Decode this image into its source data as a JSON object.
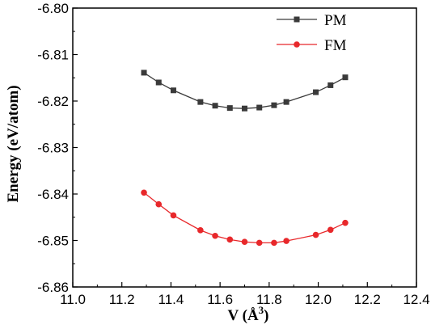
{
  "chart_data": {
    "type": "line",
    "title": "",
    "xlabel": "V (Å",
    "xlabel_sup": "3",
    "xlabel_close": ")",
    "ylabel": "Energy (eV/atom)",
    "xlim": [
      11.0,
      12.4
    ],
    "ylim": [
      -6.86,
      -6.8
    ],
    "x_ticks": [
      "11.0",
      "11.2",
      "11.4",
      "11.6",
      "11.8",
      "12.0",
      "12.2",
      "12.4"
    ],
    "x_tick_values": [
      11.0,
      11.2,
      11.4,
      11.6,
      11.8,
      12.0,
      12.2,
      12.4
    ],
    "y_ticks": [
      "-6.80",
      "-6.81",
      "-6.82",
      "-6.83",
      "-6.84",
      "-6.85",
      "-6.86"
    ],
    "y_tick_values": [
      -6.8,
      -6.81,
      -6.82,
      -6.83,
      -6.84,
      -6.85,
      -6.86
    ],
    "grid": false,
    "legend_position": "top-right",
    "series": [
      {
        "name": "PM",
        "color": "#3a3a3a",
        "marker": "square",
        "x": [
          11.29,
          11.35,
          11.41,
          11.52,
          11.58,
          11.64,
          11.7,
          11.76,
          11.82,
          11.87,
          11.99,
          12.05,
          12.11
        ],
        "y": [
          -6.8139,
          -6.816,
          -6.8177,
          -6.8202,
          -6.821,
          -6.8215,
          -6.8216,
          -6.8214,
          -6.8209,
          -6.8202,
          -6.8181,
          -6.8166,
          -6.8149
        ]
      },
      {
        "name": "FM",
        "color": "#e8282b",
        "marker": "circle",
        "x": [
          11.29,
          11.35,
          11.41,
          11.52,
          11.58,
          11.64,
          11.7,
          11.76,
          11.82,
          11.87,
          11.99,
          12.05,
          12.11
        ],
        "y": [
          -6.8397,
          -6.8422,
          -6.8446,
          -6.8478,
          -6.849,
          -6.8498,
          -6.8503,
          -6.8505,
          -6.8505,
          -6.8501,
          -6.8488,
          -6.8477,
          -6.8462
        ]
      }
    ]
  }
}
